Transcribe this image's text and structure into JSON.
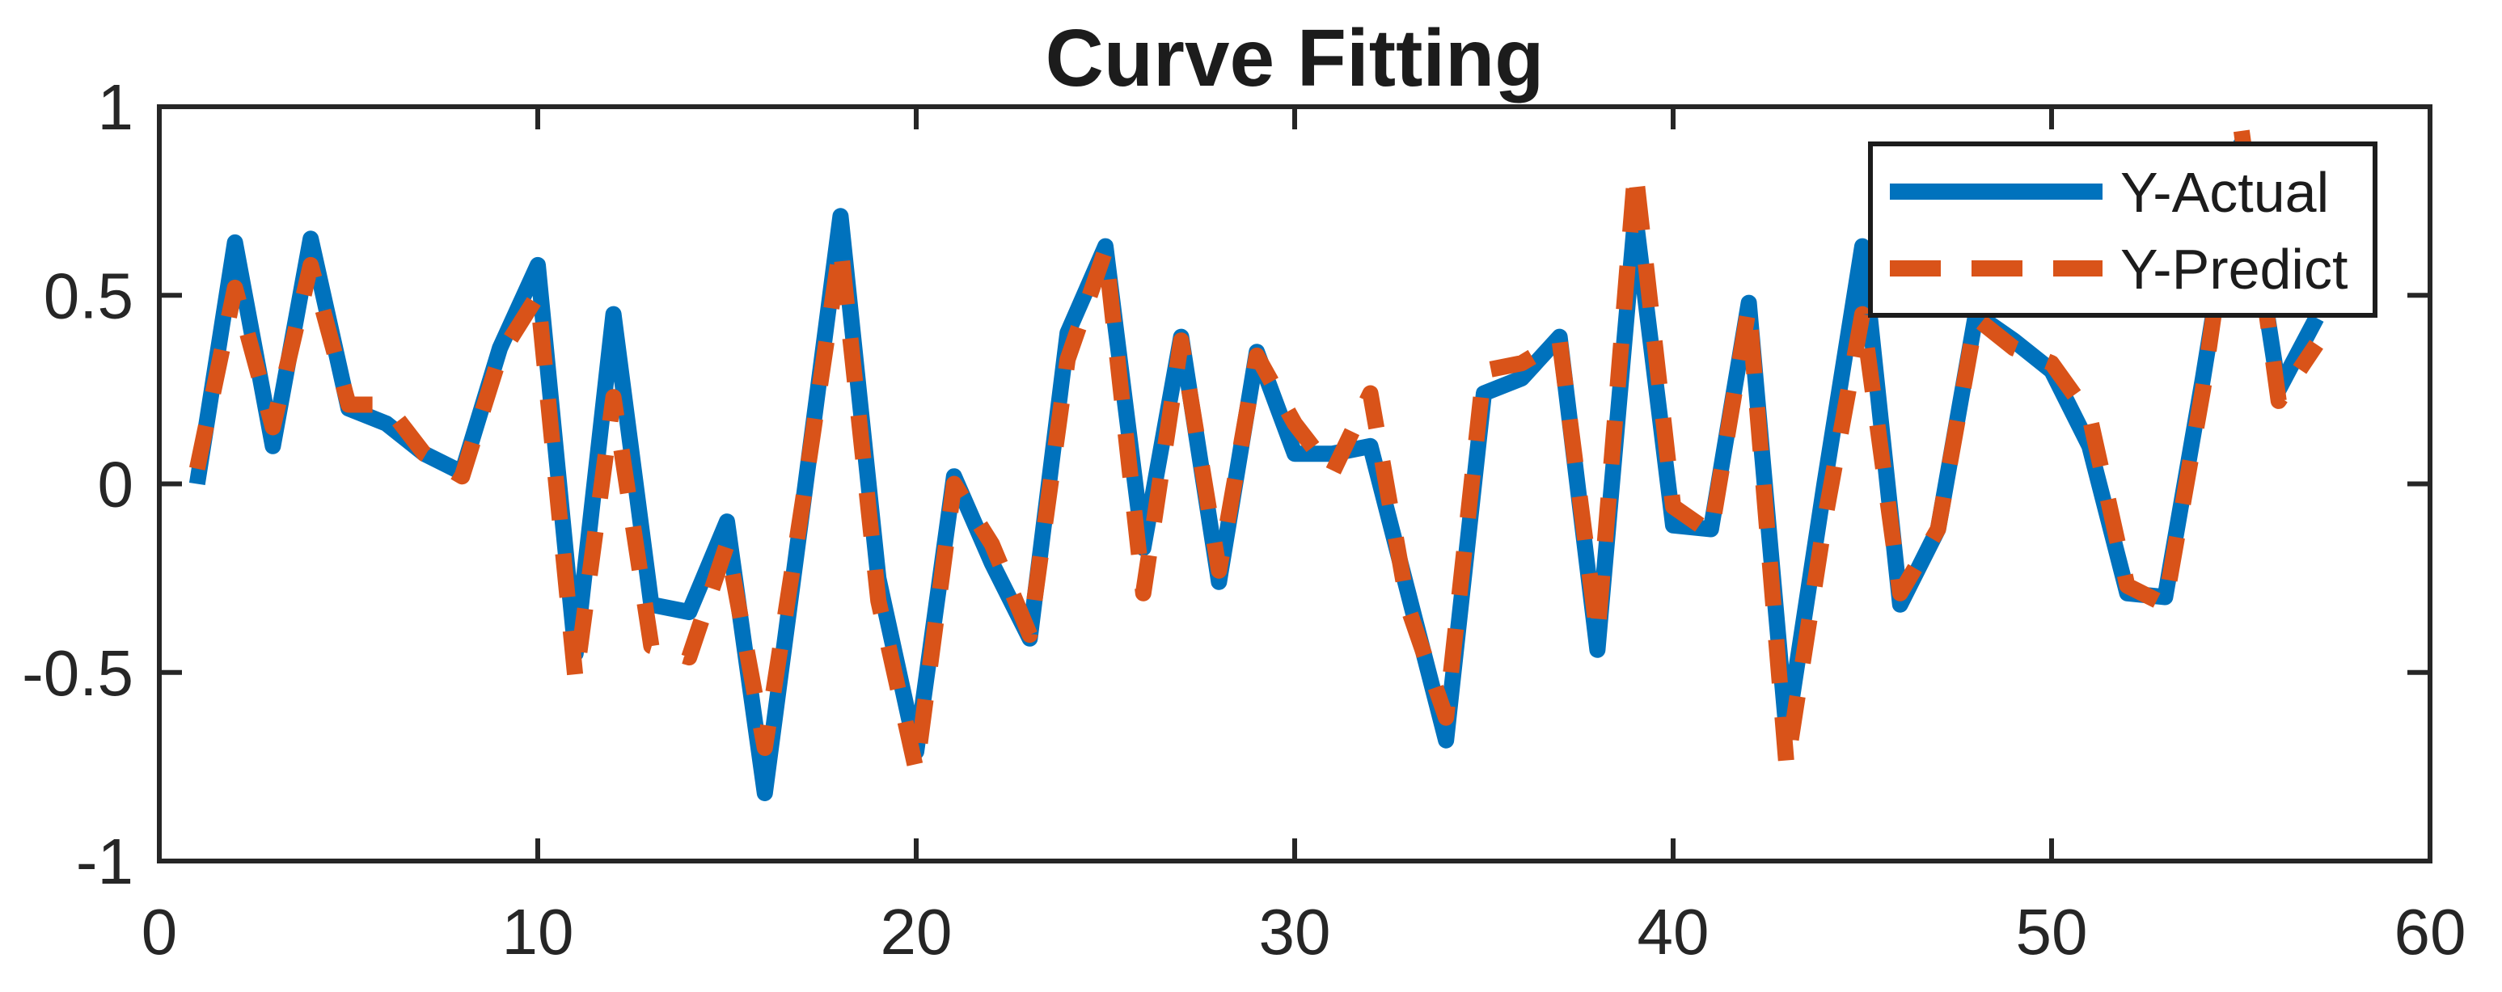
{
  "figure": {
    "background": "#ffffff",
    "axis_color": "#262626"
  },
  "chart_data": {
    "type": "line",
    "title": "Curve Fitting",
    "xlabel": "",
    "ylabel": "",
    "xlim": [
      0,
      60
    ],
    "ylim": [
      -1,
      1
    ],
    "xtick_values": [
      0,
      10,
      20,
      30,
      40,
      50,
      60
    ],
    "xtick_labels": [
      "0",
      "10",
      "20",
      "30",
      "40",
      "50",
      "60"
    ],
    "ytick_values": [
      -1,
      -0.5,
      0,
      0.5,
      1
    ],
    "ytick_labels": [
      "-1",
      "-0.5",
      "0",
      "0.5",
      "1"
    ],
    "grid": false,
    "legend_position": "top-right",
    "x": [
      1,
      2,
      3,
      4,
      5,
      6,
      7,
      8,
      9,
      10,
      11,
      12,
      13,
      14,
      15,
      16,
      17,
      18,
      19,
      20,
      21,
      22,
      23,
      24,
      25,
      26,
      27,
      28,
      29,
      30,
      31,
      32,
      33,
      34,
      35,
      36,
      37,
      38,
      39,
      40,
      41,
      42,
      43,
      44,
      45,
      46,
      47,
      48,
      49,
      50,
      51,
      52,
      53,
      54,
      55,
      56,
      57
    ],
    "series": [
      {
        "name": "Y-Actual",
        "color": "#0072BD",
        "line_style": "solid",
        "values": [
          0.0,
          0.64,
          0.1,
          0.65,
          0.2,
          0.16,
          0.08,
          0.03,
          0.36,
          0.58,
          -0.45,
          0.45,
          -0.32,
          -0.34,
          -0.1,
          -0.82,
          -0.06,
          0.71,
          -0.25,
          -0.71,
          0.02,
          -0.21,
          -0.41,
          0.4,
          0.63,
          -0.17,
          0.39,
          -0.26,
          0.35,
          0.08,
          0.08,
          0.1,
          -0.29,
          -0.68,
          0.24,
          0.28,
          0.39,
          -0.44,
          0.71,
          -0.11,
          -0.12,
          0.48,
          -0.66,
          0.0,
          0.63,
          -0.32,
          -0.12,
          0.45,
          0.38,
          0.3,
          0.1,
          -0.29,
          -0.3,
          0.28,
          0.9,
          0.25,
          0.44
        ]
      },
      {
        "name": "Y-Predict",
        "color": "#D95319",
        "line_style": "dashed",
        "values": [
          0.04,
          0.52,
          0.15,
          0.58,
          0.21,
          0.21,
          0.08,
          0.02,
          0.34,
          0.5,
          -0.52,
          0.23,
          -0.43,
          -0.46,
          -0.16,
          -0.7,
          -0.05,
          0.63,
          -0.31,
          -0.76,
          0.0,
          -0.16,
          -0.4,
          0.33,
          0.62,
          -0.29,
          0.38,
          -0.23,
          0.34,
          0.16,
          0.03,
          0.24,
          -0.33,
          -0.62,
          0.3,
          0.32,
          0.38,
          -0.4,
          0.83,
          -0.06,
          -0.13,
          0.47,
          -0.75,
          -0.1,
          0.45,
          -0.29,
          -0.12,
          0.44,
          0.36,
          0.32,
          0.18,
          -0.27,
          -0.32,
          0.25,
          0.95,
          0.22,
          0.37
        ]
      }
    ]
  }
}
